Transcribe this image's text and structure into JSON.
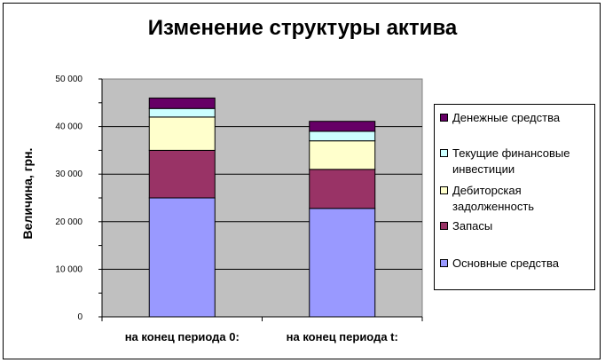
{
  "chart_data": {
    "type": "bar",
    "stacked": true,
    "title": "Изменение структуры актива",
    "ylabel": "Величина, грн.",
    "xlabel": "",
    "ylim": [
      0,
      50000
    ],
    "yticks": [
      "0",
      "10 000",
      "20 000",
      "30 000",
      "40 000",
      "50 000"
    ],
    "categories": [
      "на конец периода 0:",
      "на конец периода t:"
    ],
    "series": [
      {
        "name": "Основные средства",
        "color": "#9999ff",
        "values": [
          25000,
          22800
        ]
      },
      {
        "name": "Запасы",
        "color": "#993366",
        "values": [
          10000,
          8200
        ]
      },
      {
        "name": "Дебиторская задолженность",
        "color": "#ffffcc",
        "values": [
          7000,
          6000
        ]
      },
      {
        "name": "Текущие финансовые инвестиции",
        "color": "#ccffff",
        "values": [
          1800,
          2000
        ]
      },
      {
        "name": "Денежные средства",
        "color": "#660066",
        "values": [
          2200,
          2100
        ]
      }
    ],
    "legend_order": [
      "Денежные средства",
      "Текущие финансовые инвестиции",
      "Дебиторская задолженность",
      "Запасы",
      "Основные средства"
    ],
    "legend_lines": [
      [
        "Денежные средства"
      ],
      [
        "Текущие финансовые",
        "инвестиции"
      ],
      [
        "Дебиторская",
        "задолженность"
      ],
      [
        "Запасы"
      ],
      [
        "Основные средства"
      ]
    ],
    "plot_background": "#c0c0c0",
    "grid": true,
    "legend_position": "right"
  }
}
